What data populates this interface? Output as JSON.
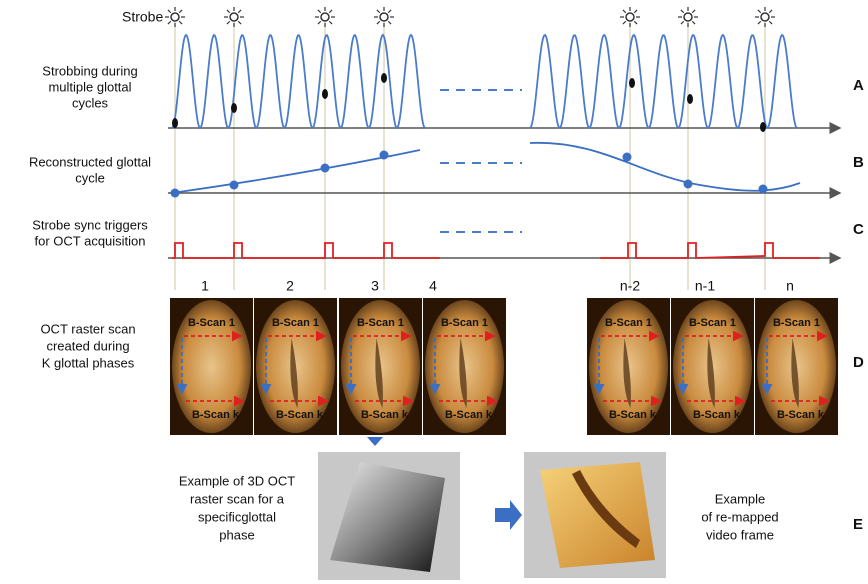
{
  "strobe_label": "Strobe",
  "rows": [
    {
      "label": [
        "Strobbing during",
        "multiple glottal",
        "cycles"
      ],
      "letter": "A"
    },
    {
      "label": [
        "Reconstructed glottal",
        "cycle"
      ],
      "letter": "B"
    },
    {
      "label": [
        "Strobe sync triggers",
        "for OCT acquisition"
      ],
      "letter": "C"
    },
    {
      "label": [
        "OCT raster scan",
        "created during",
        "K glottal phases"
      ],
      "letter": "D"
    }
  ],
  "frames": [
    {
      "number": "1",
      "top": "B-Scan 1",
      "bottom": "B-Scan k"
    },
    {
      "number": "2",
      "top": "B-Scan 1",
      "bottom": "B-Scan k"
    },
    {
      "number": "3",
      "top": "B-Scan 1",
      "bottom": "B-Scan k"
    },
    {
      "number": "4",
      "top": "B-Scan 1",
      "bottom": "B-Scan k"
    },
    {
      "number": "n-2",
      "top": "B-Scan 1",
      "bottom": "B-Scan k"
    },
    {
      "number": "n-1",
      "top": "B-Scan 1",
      "bottom": "B-Scan k"
    },
    {
      "number": "n",
      "top": "B-Scan 1",
      "bottom": "B-Scan k"
    }
  ],
  "example": {
    "left": [
      "Example of 3D OCT",
      "raster scan for a",
      "specificglottal",
      "phase"
    ],
    "right": [
      "Example",
      "of re-mapped",
      "video frame"
    ],
    "letter": "E"
  }
}
